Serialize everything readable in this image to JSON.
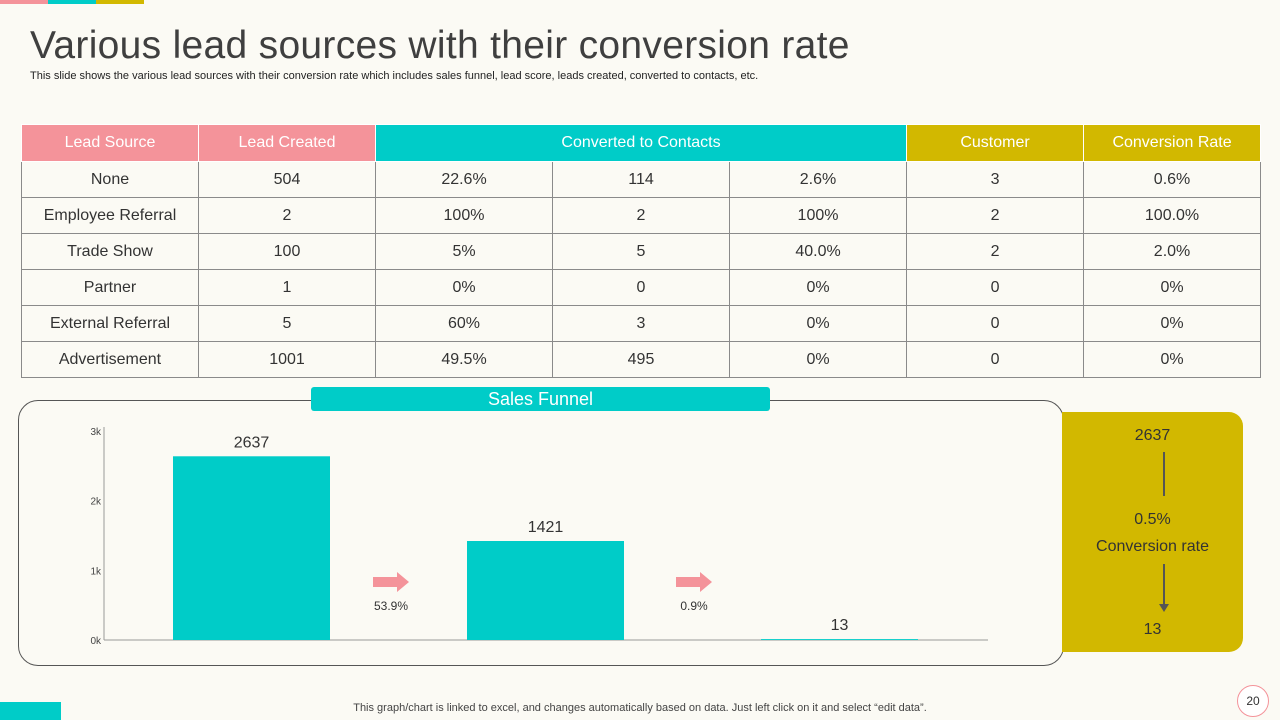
{
  "slide": {
    "title": "Various lead sources with their conversion rate",
    "subtitle": "This slide shows the various lead sources with their conversion rate which includes sales funnel, lead score, leads created, converted to contacts, etc.",
    "footer": "This graph/chart is linked to excel,  and changes automatically based on data. Just left click on it and select “edit data”.",
    "page_number": "20"
  },
  "colors": {
    "pink": "#f4939a",
    "teal": "#00ccc8",
    "olive": "#d2b800",
    "background": "#fbfaf4"
  },
  "table": {
    "headers": {
      "lead_source": "Lead Source",
      "lead_created": "Lead Created",
      "converted": "Converted to Contacts",
      "customer": "Customer",
      "conversion_rate": "Conversion Rate"
    },
    "rows": [
      [
        "None",
        "504",
        "22.6%",
        "114",
        "2.6%",
        "3",
        "0.6%"
      ],
      [
        "Employee Referral",
        "2",
        "100%",
        "2",
        "100%",
        "2",
        "100.0%"
      ],
      [
        "Trade Show",
        "100",
        "5%",
        "5",
        "40.0%",
        "2",
        "2.0%"
      ],
      [
        "Partner",
        "1",
        "0%",
        "0",
        "0%",
        "0",
        "0%"
      ],
      [
        "External Referral",
        "5",
        "60%",
        "3",
        "0%",
        "0",
        "0%"
      ],
      [
        "Advertisement",
        "1001",
        "49.5%",
        "495",
        "0%",
        "0",
        "0%"
      ]
    ]
  },
  "funnel": {
    "header": "Sales Funnel",
    "summary": {
      "top": "2637",
      "rate": "0.5%",
      "rate_label": "Conversion rate",
      "bottom": "13"
    }
  },
  "chart_data": {
    "type": "bar",
    "categories": [
      "",
      "",
      ""
    ],
    "values": [
      2637,
      1421,
      13
    ],
    "data_labels": [
      "2637",
      "1421",
      "13"
    ],
    "step_rates": [
      "53.9%",
      "0.9%"
    ],
    "ylim": [
      0,
      3000
    ],
    "yticks": [
      0,
      1000,
      2000,
      3000
    ],
    "ytick_labels": [
      "0k",
      "1k",
      "2k",
      "3k"
    ],
    "bar_color": "#00ccc8",
    "arrow_color": "#f4939a",
    "grid": false,
    "title": "",
    "xlabel": "",
    "ylabel": ""
  }
}
